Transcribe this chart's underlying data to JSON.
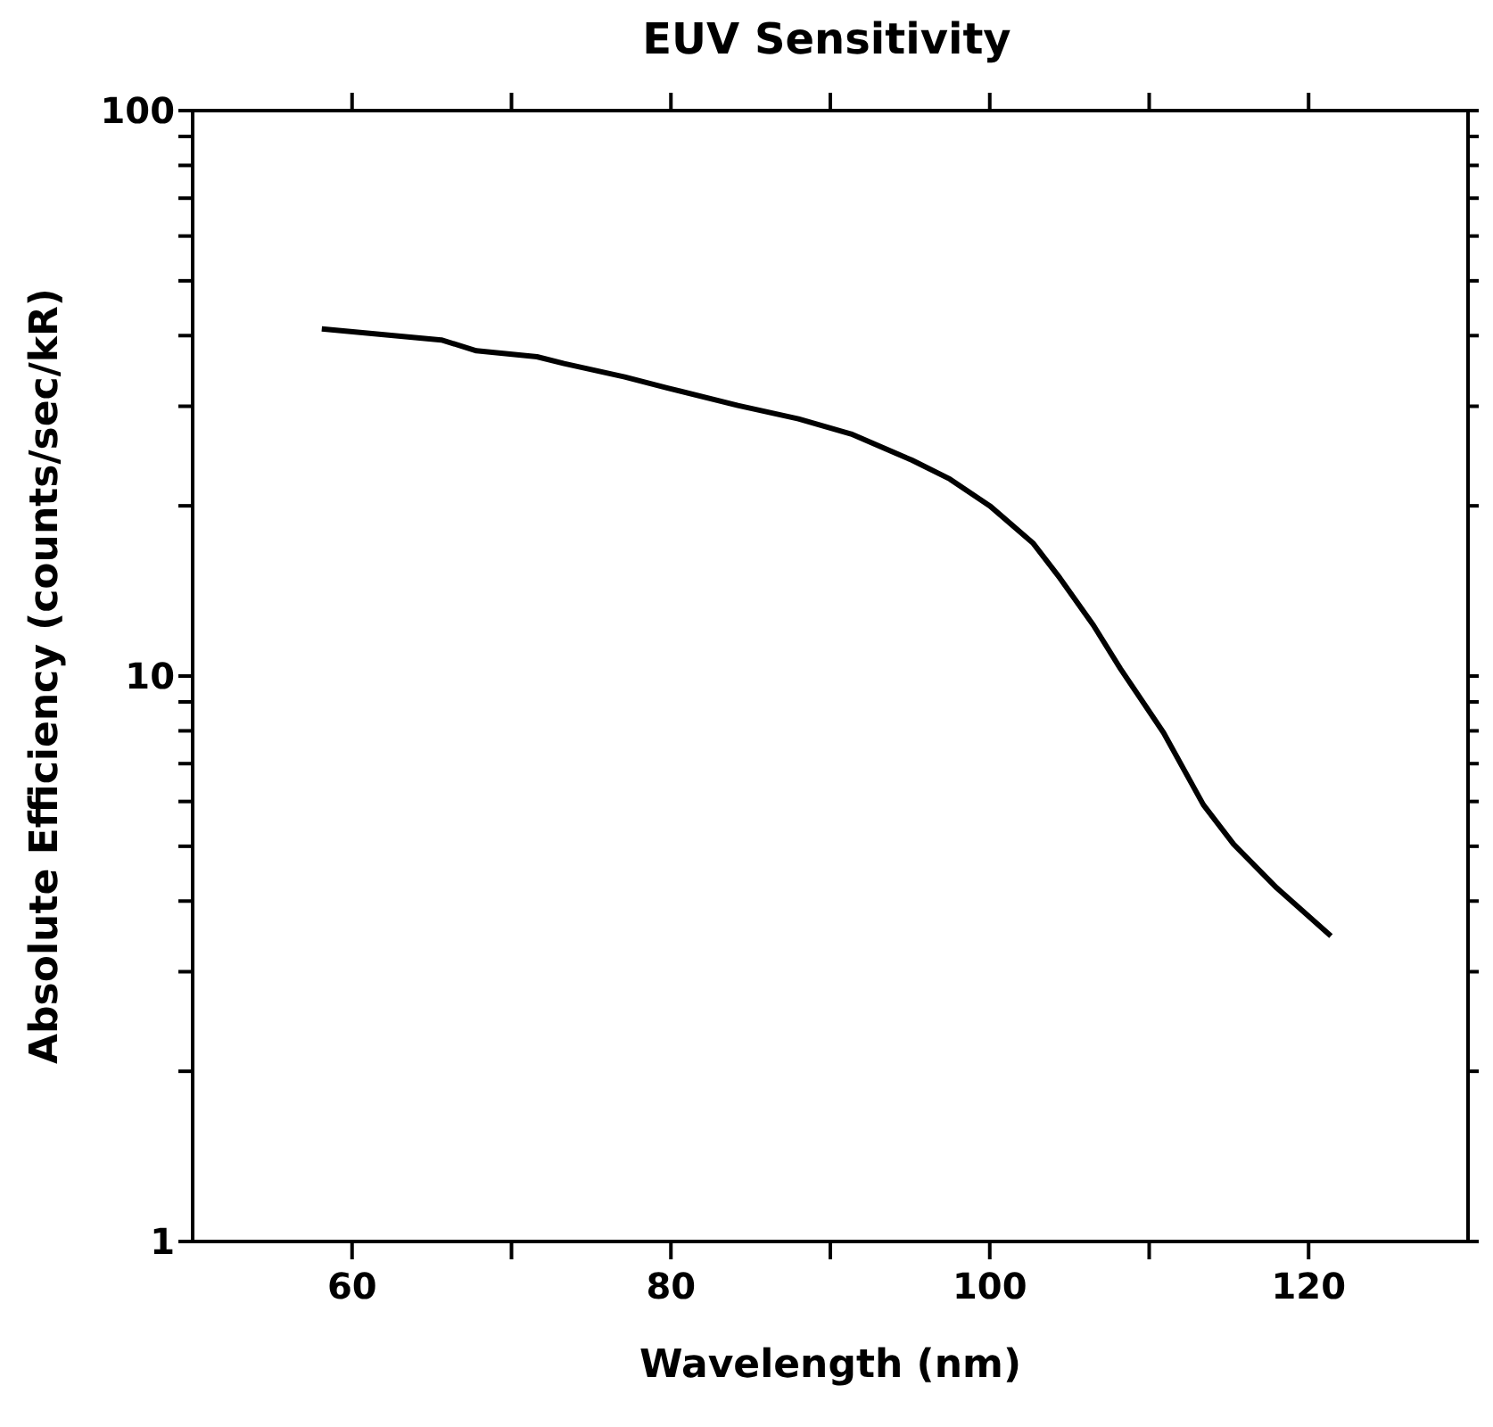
{
  "chart_data": {
    "type": "line",
    "title": "EUV Sensitivity",
    "xlabel": "Wavelength (nm)",
    "ylabel": "Absolute Efficiency (counts/sec/kR)",
    "log": "y",
    "marker": "none",
    "line_style": "solid",
    "xlim": [
      50,
      130
    ],
    "xticks": [
      60,
      {
        "value": 70,
        "label": null
      },
      80,
      {
        "value": 90,
        "label": null
      },
      100,
      {
        "value": 110,
        "label": null
      },
      120
    ],
    "ylim": [
      1,
      100
    ],
    "yticks": [
      1,
      {
        "value": 2,
        "label": null
      },
      {
        "value": 3,
        "label": null
      },
      {
        "value": 4,
        "label": null
      },
      {
        "value": 5,
        "label": null
      },
      {
        "value": 6,
        "label": null
      },
      {
        "value": 7,
        "label": null
      },
      {
        "value": 8,
        "label": null
      },
      {
        "value": 9,
        "label": null
      },
      10,
      {
        "value": 20,
        "label": null
      },
      {
        "value": 30,
        "label": null
      },
      {
        "value": 40,
        "label": null
      },
      {
        "value": 50,
        "label": null
      },
      {
        "value": 60,
        "label": null
      },
      {
        "value": 70,
        "label": null
      },
      {
        "value": 80,
        "label": null
      },
      {
        "value": 90,
        "label": null
      },
      100
    ],
    "series": [
      {
        "color": "#000000",
        "x": [
          58.1,
          65.6,
          67.8,
          71.6,
          73.3,
          77.1,
          79.8,
          84.2,
          88.0,
          91.3,
          95.1,
          97.5,
          100.0,
          102.7,
          104.4,
          106.5,
          108.2,
          110.9,
          113.4,
          115.3,
          118.0,
          121.4
        ],
        "values": [
          41.1,
          39.3,
          37.6,
          36.7,
          35.7,
          33.8,
          32.3,
          30.1,
          28.5,
          26.8,
          24.1,
          22.3,
          20.0,
          17.2,
          14.9,
          12.3,
          10.3,
          7.94,
          5.92,
          5.04,
          4.22,
          3.47
        ]
      }
    ]
  }
}
